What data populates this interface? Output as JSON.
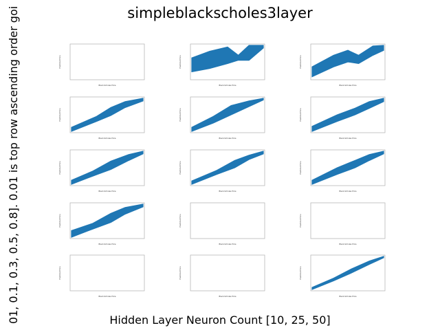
{
  "figure": {
    "title": "simpleblackscholes3layer",
    "xlabel": "Hidden Layer Neuron Count [10, 25, 50]",
    "ylabel": "01, 0.1, 0.3, 0.5, 0.8]. 0.01 is top row ascending order goi"
  },
  "subplot": {
    "xlabel": "Black-Scholes Price",
    "ylabel": "Predicted Price"
  },
  "colors": {
    "series": "#1f77b4",
    "frame": "#b8b8b8"
  },
  "chart_data": {
    "type": "scatter",
    "rows": 5,
    "cols": 3,
    "row_values": [
      0.01,
      0.1,
      0.3,
      0.5,
      0.8
    ],
    "col_values": [
      10,
      25,
      50
    ],
    "panels": [
      {
        "row": 0,
        "col": 0,
        "has_data": false,
        "band": []
      },
      {
        "row": 0,
        "col": 1,
        "has_data": true,
        "band": [
          [
            0.0,
            0.2,
            0.62
          ],
          [
            0.25,
            0.3,
            0.82
          ],
          [
            0.5,
            0.45,
            0.95
          ],
          [
            0.65,
            0.55,
            0.7
          ],
          [
            0.8,
            0.55,
            1.0
          ],
          [
            1.0,
            0.92,
            1.0
          ]
        ]
      },
      {
        "row": 0,
        "col": 2,
        "has_data": true,
        "band": [
          [
            0.0,
            0.05,
            0.35
          ],
          [
            0.3,
            0.35,
            0.7
          ],
          [
            0.5,
            0.5,
            0.85
          ],
          [
            0.65,
            0.45,
            0.7
          ],
          [
            0.85,
            0.7,
            0.98
          ],
          [
            1.0,
            0.85,
            1.0
          ]
        ]
      },
      {
        "row": 1,
        "col": 0,
        "has_data": true,
        "band": [
          [
            0.0,
            0.0,
            0.12
          ],
          [
            0.35,
            0.3,
            0.45
          ],
          [
            0.55,
            0.48,
            0.72
          ],
          [
            0.75,
            0.72,
            0.9
          ],
          [
            1.0,
            0.92,
            1.0
          ]
        ]
      },
      {
        "row": 1,
        "col": 1,
        "has_data": true,
        "band": [
          [
            0.0,
            0.0,
            0.12
          ],
          [
            0.3,
            0.25,
            0.45
          ],
          [
            0.55,
            0.5,
            0.78
          ],
          [
            0.8,
            0.75,
            0.92
          ],
          [
            1.0,
            0.95,
            1.0
          ]
        ]
      },
      {
        "row": 1,
        "col": 2,
        "has_data": true,
        "band": [
          [
            0.0,
            0.0,
            0.15
          ],
          [
            0.35,
            0.3,
            0.5
          ],
          [
            0.6,
            0.5,
            0.7
          ],
          [
            0.8,
            0.7,
            0.9
          ],
          [
            1.0,
            0.9,
            1.0
          ]
        ]
      },
      {
        "row": 2,
        "col": 0,
        "has_data": true,
        "band": [
          [
            0.0,
            0.0,
            0.12
          ],
          [
            0.3,
            0.25,
            0.4
          ],
          [
            0.55,
            0.45,
            0.7
          ],
          [
            0.8,
            0.72,
            0.9
          ],
          [
            1.0,
            0.92,
            1.0
          ]
        ]
      },
      {
        "row": 2,
        "col": 1,
        "has_data": true,
        "band": [
          [
            0.0,
            0.0,
            0.1
          ],
          [
            0.35,
            0.3,
            0.42
          ],
          [
            0.6,
            0.5,
            0.72
          ],
          [
            0.8,
            0.75,
            0.88
          ],
          [
            1.0,
            0.92,
            1.0
          ]
        ]
      },
      {
        "row": 2,
        "col": 2,
        "has_data": true,
        "band": [
          [
            0.0,
            0.0,
            0.12
          ],
          [
            0.35,
            0.3,
            0.5
          ],
          [
            0.6,
            0.5,
            0.72
          ],
          [
            0.8,
            0.72,
            0.9
          ],
          [
            1.0,
            0.92,
            1.0
          ]
        ]
      },
      {
        "row": 3,
        "col": 0,
        "has_data": true,
        "band": [
          [
            0.0,
            0.0,
            0.2
          ],
          [
            0.3,
            0.25,
            0.42
          ],
          [
            0.55,
            0.45,
            0.72
          ],
          [
            0.75,
            0.7,
            0.9
          ],
          [
            1.0,
            0.92,
            1.0
          ]
        ]
      },
      {
        "row": 3,
        "col": 1,
        "has_data": false,
        "band": []
      },
      {
        "row": 3,
        "col": 2,
        "has_data": false,
        "band": []
      },
      {
        "row": 4,
        "col": 0,
        "has_data": false,
        "band": []
      },
      {
        "row": 4,
        "col": 1,
        "has_data": false,
        "band": []
      },
      {
        "row": 4,
        "col": 2,
        "has_data": true,
        "band": [
          [
            0.0,
            0.0,
            0.06
          ],
          [
            0.3,
            0.26,
            0.34
          ],
          [
            0.55,
            0.5,
            0.62
          ],
          [
            0.8,
            0.76,
            0.86
          ],
          [
            1.0,
            0.96,
            1.0
          ]
        ]
      }
    ]
  }
}
